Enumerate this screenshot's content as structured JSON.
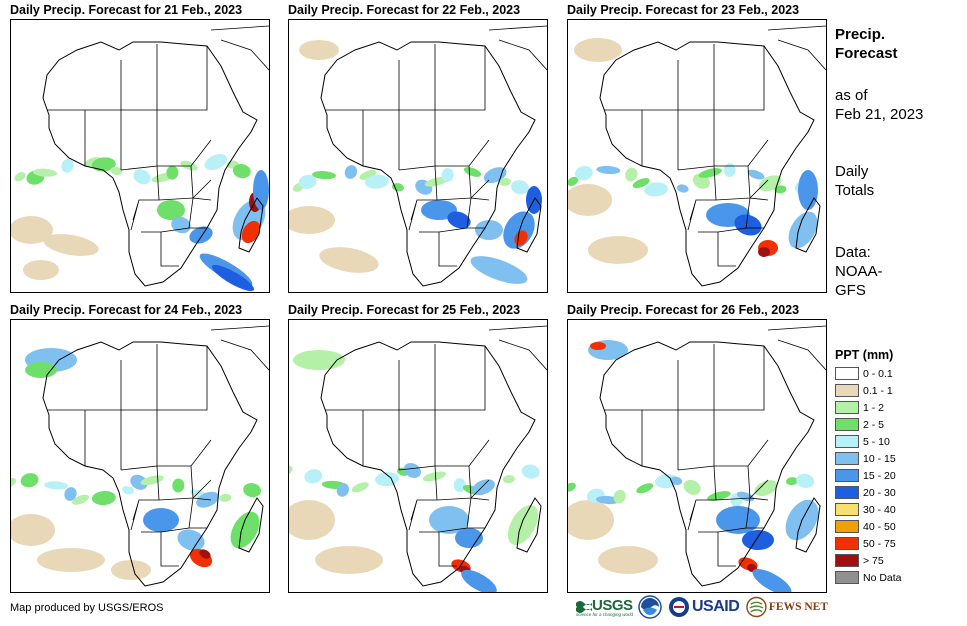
{
  "panels": [
    {
      "title": "Daily Precip. Forecast for 21 Feb., 2023"
    },
    {
      "title": "Daily Precip. Forecast for 22 Feb., 2023"
    },
    {
      "title": "Daily Precip. Forecast for 23 Feb., 2023"
    },
    {
      "title": "Daily Precip. Forecast for 24 Feb., 2023"
    },
    {
      "title": "Daily Precip. Forecast for 25 Feb., 2023"
    },
    {
      "title": "Daily Precip. Forecast for 26 Feb., 2023"
    }
  ],
  "side": {
    "heading_line1": "Precip.",
    "heading_line2": "Forecast",
    "asof_line1": "as of",
    "asof_line2": "Feb 21, 2023",
    "totals_line1": "Daily",
    "totals_line2": "Totals",
    "data_line1": "Data:",
    "data_line2": "NOAA-",
    "data_line3": "GFS"
  },
  "legend": {
    "title": "PPT (mm)",
    "items": [
      {
        "label": "0 - 0.1",
        "color": "#ffffff"
      },
      {
        "label": "0.1 - 1",
        "color": "#e8d8b8"
      },
      {
        "label": "1 - 2",
        "color": "#b4f0a8"
      },
      {
        "label": "2 - 5",
        "color": "#6ee06a"
      },
      {
        "label": "5 - 10",
        "color": "#b8f0f8"
      },
      {
        "label": "10 - 15",
        "color": "#80c0f0"
      },
      {
        "label": "15 - 20",
        "color": "#4a96ea"
      },
      {
        "label": "20 - 30",
        "color": "#1e5ee0"
      },
      {
        "label": "30 - 40",
        "color": "#f8e070"
      },
      {
        "label": "40 - 50",
        "color": "#f0a000"
      },
      {
        "label": "50 - 75",
        "color": "#f03000"
      },
      {
        "label": "> 75",
        "color": "#a01010"
      },
      {
        "label": "No Data",
        "color": "#909090"
      }
    ]
  },
  "footer": {
    "credit": "Map produced by USGS/EROS"
  },
  "logos": {
    "usgs": "USGS",
    "usgs_tagline": "science for a changing world",
    "noaa": "NOAA",
    "usaid": "USAID",
    "fewsnet": "FEWS NET"
  }
}
